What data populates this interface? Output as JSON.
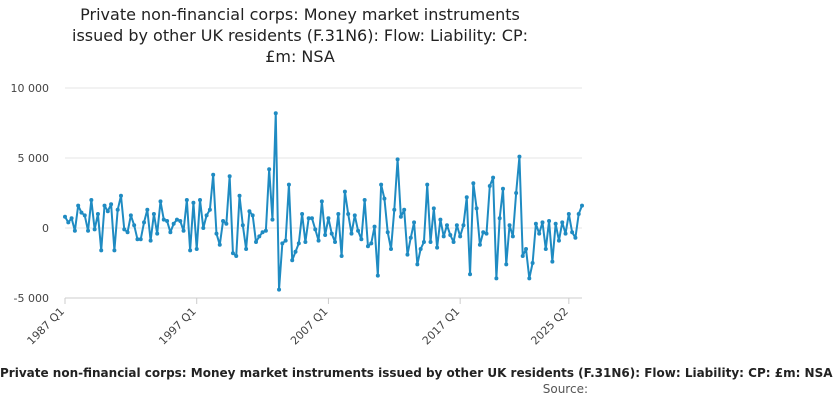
{
  "chart_data": {
    "type": "line",
    "title_lines": [
      "Private non-financial corps: Money market instruments",
      "issued by other UK residents (F.31N6): Flow: Liability: CP:",
      "£m: NSA"
    ],
    "y_ticks": [
      -5000,
      0,
      5000,
      10000
    ],
    "y_tick_labels": [
      "-5 000",
      "0",
      "5 000",
      "10 000"
    ],
    "ylim": [
      -5000,
      10000
    ],
    "x_tick_labels": [
      "1987 Q1",
      "1997 Q1",
      "2007 Q1",
      "2017 Q1",
      "2025 Q2"
    ],
    "x_tick_positions": [
      0,
      40,
      80,
      120,
      153
    ],
    "grid": true,
    "legend_position": "bottom",
    "series": [
      {
        "name": "Private non-financial corps: Money market instruments issued by other UK residents (F.31N6): Flow: Liability: CP: £m: NSA",
        "color": "#1f8bc2",
        "values": [
          800,
          400,
          700,
          -200,
          1600,
          1100,
          900,
          -200,
          2000,
          -100,
          1000,
          -1600,
          1600,
          1200,
          1700,
          -1600,
          1300,
          2300,
          -100,
          -300,
          900,
          200,
          -800,
          -800,
          400,
          1300,
          -900,
          1000,
          -400,
          1900,
          600,
          500,
          -300,
          300,
          600,
          500,
          -200,
          2000,
          -1600,
          1800,
          -1500,
          2000,
          0,
          900,
          1300,
          3800,
          -400,
          -1200,
          500,
          300,
          3700,
          -1800,
          -2000,
          2300,
          200,
          -1500,
          1200,
          900,
          -1000,
          -600,
          -300,
          -200,
          4200,
          600,
          8200,
          -4400,
          -1100,
          -900,
          3100,
          -2300,
          -1700,
          -1100,
          1000,
          -1000,
          700,
          700,
          -100,
          -900,
          1900,
          -500,
          700,
          -400,
          -1000,
          1000,
          -2000,
          2600,
          1000,
          -400,
          900,
          -200,
          -800,
          2000,
          -1300,
          -1100,
          100,
          -3400,
          3100,
          2100,
          -300,
          -1500,
          1300,
          4900,
          800,
          1300,
          -1900,
          -700,
          400,
          -2600,
          -1500,
          -1000,
          3100,
          -1000,
          1400,
          -1400,
          600,
          -600,
          200,
          -500,
          -1000,
          200,
          -600,
          200,
          2200,
          -3300,
          3200,
          1400,
          -1200,
          -300,
          -400,
          3000,
          3600,
          -3600,
          700,
          2800,
          -2600,
          200,
          -600,
          2500,
          5100,
          -2000,
          -1500,
          -3600,
          -2500,
          300,
          -400,
          400,
          -1500,
          500,
          -2400,
          300,
          -900,
          400,
          -400,
          1000,
          -300,
          -700,
          1000,
          1600
        ]
      }
    ],
    "source_label": "Source:"
  }
}
